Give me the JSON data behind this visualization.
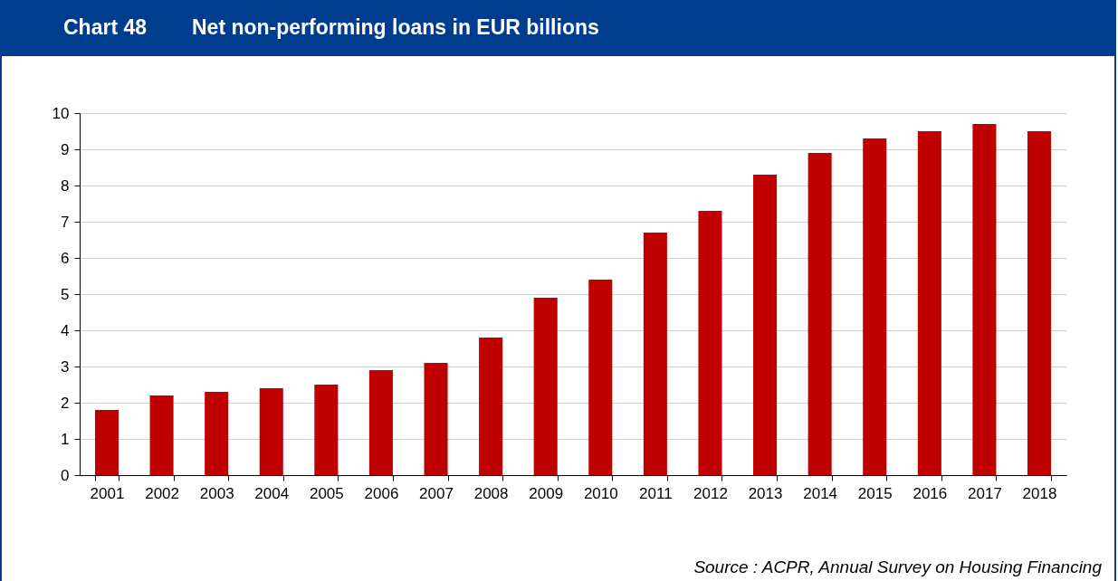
{
  "chart_data": {
    "type": "bar",
    "title": "Chart 48",
    "subtitle": "Net non-performing loans in EUR billions",
    "categories": [
      "2001",
      "2002",
      "2003",
      "2004",
      "2005",
      "2006",
      "2007",
      "2008",
      "2009",
      "2010",
      "2011",
      "2012",
      "2013",
      "2014",
      "2015",
      "2016",
      "2017",
      "2018"
    ],
    "values": [
      1.8,
      2.2,
      2.3,
      2.4,
      2.5,
      2.9,
      3.1,
      3.8,
      4.9,
      5.4,
      6.7,
      7.3,
      8.3,
      8.9,
      9.3,
      9.5,
      9.7,
      9.5
    ],
    "color": "#c00000",
    "ylim": [
      0,
      10
    ],
    "yticks": [
      0,
      1,
      2,
      3,
      4,
      5,
      6,
      7,
      8,
      9,
      10
    ],
    "grid": "y",
    "annotations": [
      "Source : ACPR, Annual Survey on Housing Financing"
    ]
  }
}
